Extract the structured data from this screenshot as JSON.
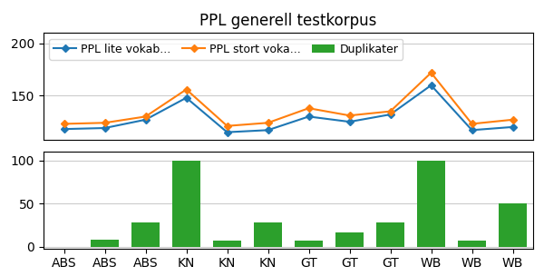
{
  "chart_data": [
    {
      "type": "line",
      "title": "PPL generell testkorpus",
      "categories": [
        "ABS",
        "ABS",
        "ABS",
        "KN",
        "KN",
        "KN",
        "GT",
        "GT",
        "GT",
        "WB",
        "WB",
        "WB"
      ],
      "series": [
        {
          "name": "PPL lite vokab...",
          "marker": "diamond",
          "values": [
            118,
            119,
            127,
            148,
            115,
            117,
            130,
            125,
            132,
            160,
            117,
            120
          ]
        },
        {
          "name": "PPL stort voka...",
          "marker": "diamond",
          "values": [
            123,
            124,
            130,
            156,
            121,
            124,
            138,
            131,
            135,
            172,
            123,
            127
          ]
        }
      ],
      "ylim": [
        108,
        210
      ],
      "yticks": [
        150,
        200
      ],
      "grid": true,
      "legend": "upper left",
      "tick_labels": "y"
    },
    {
      "type": "bar",
      "categories": [
        "ABS",
        "ABS",
        "ABS",
        "KN",
        "KN",
        "KN",
        "GT",
        "GT",
        "GT",
        "WB",
        "WB",
        "WB"
      ],
      "series": [
        {
          "name": "Duplikater",
          "values": [
            0,
            8,
            28,
            100,
            7,
            28,
            7,
            17,
            28,
            100,
            7,
            50
          ]
        }
      ],
      "ylim": [
        -2,
        110
      ],
      "yticks": [
        0,
        50,
        100
      ],
      "grid": true
    }
  ]
}
